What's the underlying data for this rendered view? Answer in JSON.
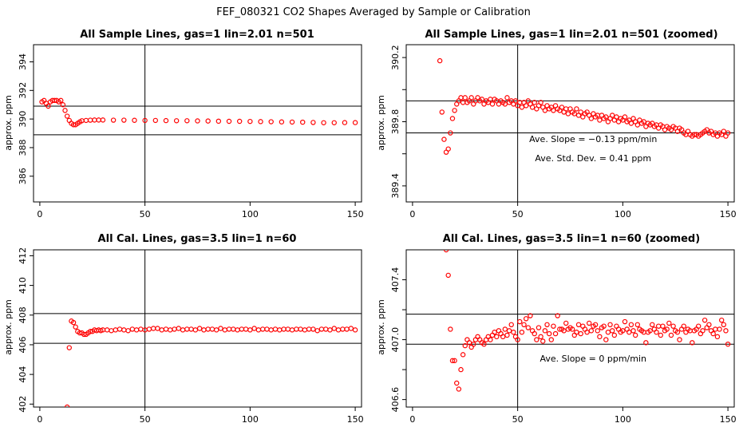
{
  "figure": {
    "title": "FEF_080321  CO2 Shapes Averaged by Sample or Calibration"
  },
  "chart_data": [
    {
      "type": "scatter",
      "title": "All Sample Lines, gas=1 lin=2.01 n=501",
      "xlabel": "",
      "ylabel": "approx. ppm",
      "xlim": [
        -3,
        153
      ],
      "ylim": [
        384.2,
        395.2
      ],
      "xticks": [
        0,
        50,
        100,
        150
      ],
      "yticks": [
        386,
        388,
        390,
        392,
        394
      ],
      "vline": [
        50
      ],
      "hlines": [
        388.9,
        390.9
      ],
      "annotations": [],
      "series": [
        {
          "color": "#ff0000",
          "x": [
            1,
            2,
            3,
            4,
            5,
            6,
            7,
            8,
            9,
            10,
            11,
            12,
            13,
            14,
            15,
            16,
            17,
            18,
            19,
            20,
            22,
            24,
            26,
            28,
            30,
            35,
            40,
            45,
            50,
            55,
            60,
            65,
            70,
            75,
            80,
            85,
            90,
            95,
            100,
            105,
            110,
            115,
            120,
            125,
            130,
            135,
            140,
            145,
            150
          ],
          "y": [
            391.2,
            391.3,
            391.1,
            390.9,
            391.2,
            391.3,
            391.3,
            391.3,
            391.2,
            391.3,
            391.0,
            390.6,
            390.2,
            389.9,
            389.7,
            389.6,
            389.6,
            389.7,
            389.8,
            389.88,
            389.9,
            389.92,
            389.93,
            389.93,
            389.93,
            389.92,
            389.92,
            389.91,
            389.9,
            389.9,
            389.89,
            389.88,
            389.88,
            389.87,
            389.86,
            389.85,
            389.84,
            389.84,
            389.83,
            389.82,
            389.81,
            389.8,
            389.79,
            389.78,
            389.76,
            389.74,
            389.74,
            389.75,
            389.75
          ]
        }
      ]
    },
    {
      "type": "scatter",
      "title": "All Sample Lines, gas=1 lin=2.01 n=501 (zoomed)",
      "xlabel": "",
      "ylabel": "approx. ppm",
      "xlim": [
        -3,
        153
      ],
      "ylim": [
        389.3,
        390.28
      ],
      "xticks": [
        0,
        50,
        100,
        150
      ],
      "yticks": [
        389.4,
        389.6,
        389.8,
        390.0,
        390.2
      ],
      "ytick_labels": [
        "389.4",
        "",
        "389.8",
        "",
        "390.2"
      ],
      "vline": [
        50
      ],
      "hlines": [
        389.73,
        389.93
      ],
      "annotations": [
        "Ave. Slope =  −0.13  ppm/min",
        "Ave. Std. Dev. =  0.41  ppm"
      ],
      "series": [
        {
          "color": "#ff0000",
          "x": [
            13,
            14,
            15,
            16,
            17,
            18,
            19,
            20,
            21,
            22,
            23,
            24,
            25,
            26,
            27,
            28,
            29,
            30,
            31,
            32,
            33,
            34,
            35,
            36,
            37,
            38,
            39,
            40,
            41,
            42,
            43,
            44,
            45,
            46,
            47,
            48,
            49,
            50,
            51,
            52,
            53,
            54,
            55,
            56,
            57,
            58,
            59,
            60,
            61,
            62,
            63,
            64,
            65,
            66,
            67,
            68,
            69,
            70,
            71,
            72,
            73,
            74,
            75,
            76,
            77,
            78,
            79,
            80,
            81,
            82,
            83,
            84,
            85,
            86,
            87,
            88,
            89,
            90,
            91,
            92,
            93,
            94,
            95,
            96,
            97,
            98,
            99,
            100,
            101,
            102,
            103,
            104,
            105,
            106,
            107,
            108,
            109,
            110,
            111,
            112,
            113,
            114,
            115,
            116,
            117,
            118,
            119,
            120,
            121,
            122,
            123,
            124,
            125,
            126,
            127,
            128,
            129,
            130,
            131,
            132,
            133,
            134,
            135,
            136,
            137,
            138,
            139,
            140,
            141,
            142,
            143,
            144,
            145,
            146,
            147,
            148,
            149,
            150
          ],
          "y": [
            390.18,
            389.86,
            389.69,
            389.61,
            389.63,
            389.73,
            389.82,
            389.87,
            389.91,
            389.93,
            389.95,
            389.92,
            389.95,
            389.92,
            389.93,
            389.95,
            389.91,
            389.93,
            389.95,
            389.93,
            389.94,
            389.91,
            389.93,
            389.92,
            389.94,
            389.91,
            389.94,
            389.93,
            389.91,
            389.93,
            389.92,
            389.91,
            389.95,
            389.92,
            389.93,
            389.91,
            389.93,
            389.9,
            389.92,
            389.89,
            389.92,
            389.9,
            389.93,
            389.91,
            389.89,
            389.92,
            389.88,
            389.9,
            389.92,
            389.89,
            389.87,
            389.9,
            389.88,
            389.89,
            389.87,
            389.9,
            389.88,
            389.87,
            389.89,
            389.86,
            389.88,
            389.85,
            389.88,
            389.86,
            389.85,
            389.88,
            389.84,
            389.86,
            389.83,
            389.85,
            389.86,
            389.84,
            389.82,
            389.85,
            389.83,
            389.84,
            389.81,
            389.84,
            389.82,
            389.83,
            389.8,
            389.82,
            389.84,
            389.81,
            389.83,
            389.8,
            389.82,
            389.81,
            389.83,
            389.8,
            389.81,
            389.79,
            389.82,
            389.8,
            389.78,
            389.81,
            389.79,
            389.8,
            389.77,
            389.79,
            389.78,
            389.79,
            389.77,
            389.78,
            389.76,
            389.78,
            389.77,
            389.75,
            389.77,
            389.76,
            389.75,
            389.77,
            389.76,
            389.74,
            389.76,
            389.75,
            389.73,
            389.72,
            389.74,
            389.72,
            389.71,
            389.72,
            389.72,
            389.71,
            389.72,
            389.73,
            389.74,
            389.75,
            389.73,
            389.74,
            389.72,
            389.73,
            389.71,
            389.73,
            389.72,
            389.74,
            389.71,
            389.73
          ]
        }
      ]
    },
    {
      "type": "scatter",
      "title": "All Cal. Lines, gas=3.5 lin=1 n=60",
      "xlabel": "",
      "ylabel": "approx. ppm",
      "xlim": [
        -3,
        153
      ],
      "ylim": [
        401.8,
        412.4
      ],
      "xticks": [
        0,
        50,
        100,
        150
      ],
      "yticks": [
        402,
        404,
        406,
        408,
        410,
        412
      ],
      "vline": [
        50
      ],
      "hlines": [
        406.1,
        408.1
      ],
      "annotations": [],
      "series": [
        {
          "color": "#ff0000",
          "x": [
            13,
            14,
            15,
            16,
            17,
            18,
            19,
            20,
            21,
            22,
            23,
            24,
            25,
            26,
            27,
            28,
            29,
            30,
            32,
            34,
            36,
            38,
            40,
            42,
            44,
            46,
            48,
            50,
            52,
            54,
            56,
            58,
            60,
            62,
            64,
            66,
            68,
            70,
            72,
            74,
            76,
            78,
            80,
            82,
            84,
            86,
            88,
            90,
            92,
            94,
            96,
            98,
            100,
            102,
            104,
            106,
            108,
            110,
            112,
            114,
            116,
            118,
            120,
            122,
            124,
            126,
            128,
            130,
            132,
            134,
            136,
            138,
            140,
            142,
            144,
            146,
            148,
            150
          ],
          "y": [
            401.8,
            405.8,
            407.6,
            407.5,
            407.2,
            406.9,
            406.8,
            406.8,
            406.7,
            406.7,
            406.8,
            406.9,
            406.9,
            407.0,
            406.95,
            407.0,
            406.95,
            407.0,
            407.0,
            406.95,
            407.0,
            407.05,
            407.0,
            406.95,
            407.05,
            407.0,
            407.05,
            407.0,
            407.05,
            407.1,
            407.1,
            407.0,
            407.05,
            407.0,
            407.05,
            407.1,
            407.0,
            407.05,
            407.05,
            407.0,
            407.1,
            407.0,
            407.05,
            407.05,
            407.0,
            407.1,
            407.0,
            407.05,
            407.05,
            407.0,
            407.05,
            407.05,
            407.0,
            407.1,
            407.0,
            407.05,
            407.05,
            407.0,
            407.05,
            407.0,
            407.05,
            407.05,
            407.0,
            407.05,
            407.05,
            407.0,
            407.05,
            407.05,
            406.95,
            407.05,
            407.05,
            407.0,
            407.1,
            407.0,
            407.05,
            407.05,
            407.1,
            407.0
          ]
        }
      ]
    },
    {
      "type": "scatter",
      "title": "All Cal. Lines, gas=3.5 lin=1 n=60 (zoomed)",
      "xlabel": "",
      "ylabel": "approx. ppm",
      "xlim": [
        -3,
        153
      ],
      "ylim": [
        406.55,
        407.6
      ],
      "xticks": [
        0,
        50,
        100,
        150
      ],
      "yticks": [
        406.6,
        406.8,
        407.0,
        407.2,
        407.4
      ],
      "ytick_labels": [
        "406.6",
        "",
        "407.0",
        "",
        "407.4"
      ],
      "vline": [
        50
      ],
      "hlines": [
        406.97,
        407.17
      ],
      "annotations": [
        "Ave. Slope =  0  ppm/min"
      ],
      "series": [
        {
          "color": "#ff0000",
          "x": [
            16,
            17,
            18,
            19,
            20,
            21,
            22,
            23,
            24,
            25,
            26,
            27,
            28,
            29,
            30,
            31,
            32,
            33,
            34,
            35,
            36,
            37,
            38,
            39,
            40,
            41,
            42,
            43,
            44,
            45,
            46,
            47,
            48,
            49,
            50,
            51,
            52,
            53,
            54,
            55,
            56,
            57,
            58,
            59,
            60,
            61,
            62,
            63,
            64,
            65,
            66,
            67,
            68,
            69,
            70,
            71,
            72,
            73,
            74,
            75,
            76,
            77,
            78,
            79,
            80,
            81,
            82,
            83,
            84,
            85,
            86,
            87,
            88,
            89,
            90,
            91,
            92,
            93,
            94,
            95,
            96,
            97,
            98,
            99,
            100,
            101,
            102,
            103,
            104,
            105,
            106,
            107,
            108,
            109,
            110,
            111,
            112,
            113,
            114,
            115,
            116,
            117,
            118,
            119,
            120,
            121,
            122,
            123,
            124,
            125,
            126,
            127,
            128,
            129,
            130,
            131,
            132,
            133,
            134,
            135,
            136,
            137,
            138,
            139,
            140,
            141,
            142,
            143,
            144,
            145,
            146,
            147,
            148,
            149,
            150
          ],
          "y": [
            407.6,
            407.43,
            407.07,
            406.86,
            406.86,
            406.71,
            406.67,
            406.8,
            406.9,
            406.96,
            407.0,
            406.98,
            406.95,
            406.97,
            407.0,
            407.02,
            407.0,
            406.98,
            406.97,
            407.0,
            407.02,
            407.0,
            407.03,
            407.05,
            407.02,
            407.06,
            407.04,
            407.02,
            407.07,
            407.03,
            407.06,
            407.1,
            407.05,
            407.02,
            407.0,
            407.12,
            407.05,
            407.1,
            407.14,
            407.08,
            407.16,
            407.06,
            407.04,
            407.0,
            407.08,
            407.02,
            406.99,
            407.06,
            407.1,
            407.04,
            407.0,
            407.09,
            407.04,
            407.16,
            407.07,
            407.07,
            407.06,
            407.11,
            407.07,
            407.08,
            407.07,
            407.03,
            407.05,
            407.1,
            407.04,
            407.09,
            407.07,
            407.05,
            407.11,
            407.06,
            407.09,
            407.1,
            407.06,
            407.02,
            407.08,
            407.09,
            407.0,
            407.05,
            407.1,
            407.06,
            407.03,
            407.09,
            407.07,
            407.05,
            407.06,
            407.12,
            407.07,
            407.05,
            407.1,
            407.06,
            407.03,
            407.1,
            407.07,
            407.06,
            407.05,
            406.98,
            407.05,
            407.06,
            407.1,
            407.07,
            407.05,
            407.09,
            407.03,
            407.09,
            407.06,
            407.07,
            407.11,
            407.03,
            407.09,
            407.06,
            407.05,
            407.0,
            407.07,
            407.09,
            407.05,
            407.07,
            407.06,
            406.98,
            407.06,
            407.07,
            407.09,
            407.04,
            407.06,
            407.13,
            407.08,
            407.1,
            407.06,
            407.04,
            407.07,
            407.02,
            407.07,
            407.13,
            407.1,
            407.06,
            406.97
          ]
        }
      ]
    }
  ]
}
